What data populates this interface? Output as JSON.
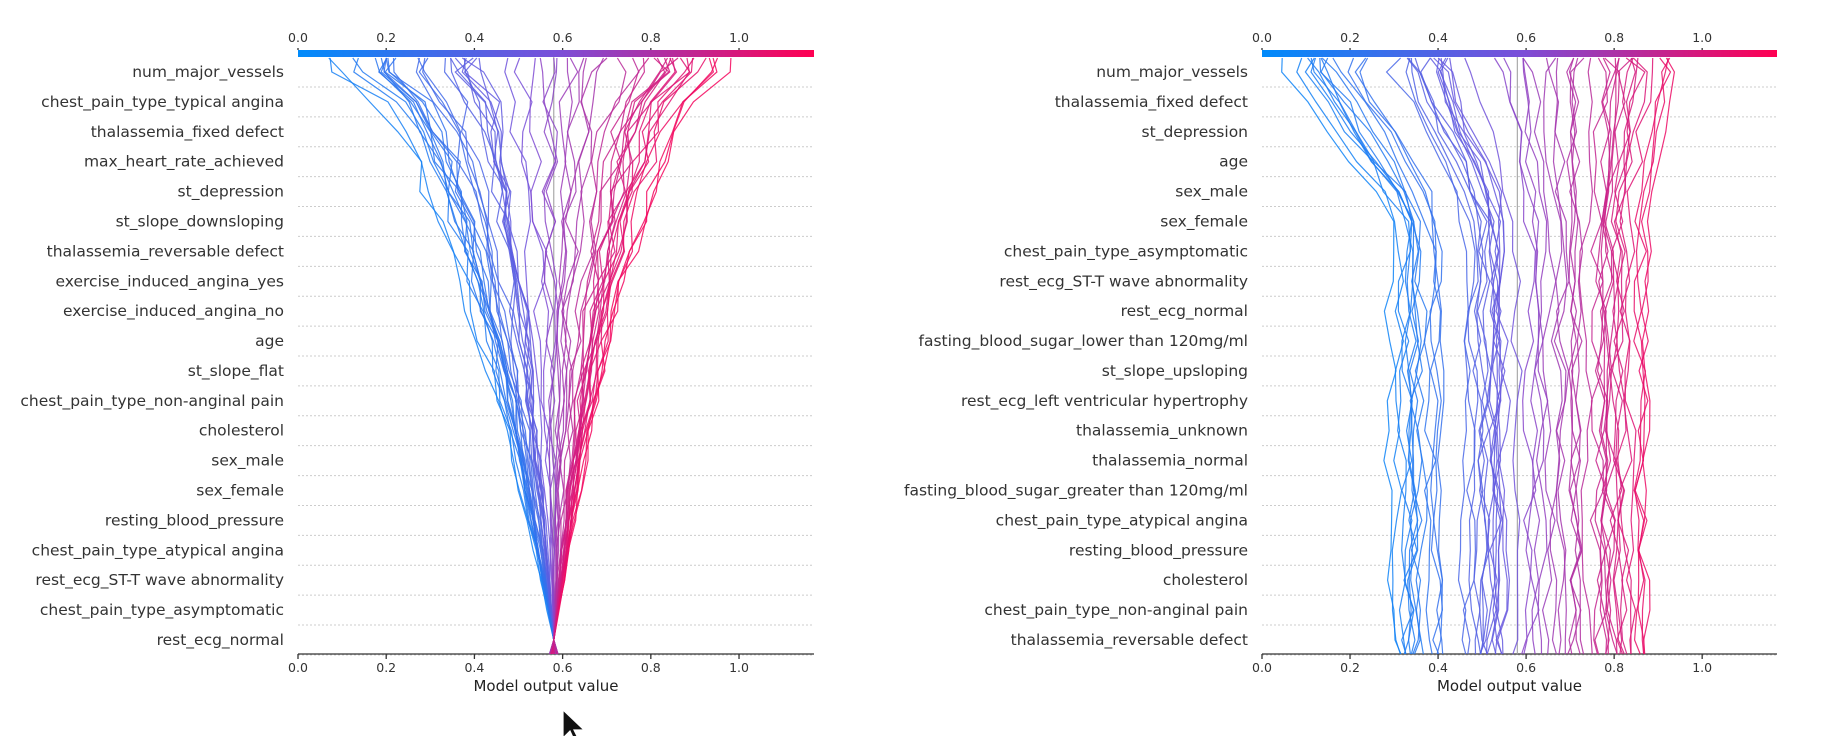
{
  "chart_data": [
    {
      "type": "decision_plot",
      "xlabel": "Model output value",
      "xticks": [
        "0.0",
        "0.2",
        "0.4",
        "0.6",
        "0.8",
        "1.0"
      ],
      "xlim": [
        0.0,
        1.17
      ],
      "base_value": 0.58,
      "colorbar_range": [
        0.0,
        1.0
      ],
      "colormap": [
        "#008bfb",
        "#7a4fd9",
        "#ff0052"
      ],
      "features": [
        "num_major_vessels",
        "chest_pain_type_typical angina",
        "thalassemia_fixed defect",
        "max_heart_rate_achieved",
        "st_depression",
        "st_slope_downsloping",
        "thalassemia_reversable defect",
        "exercise_induced_angina_yes",
        "exercise_induced_angina_no",
        "age",
        "st_slope_flat",
        "chest_pain_type_non-anginal pain",
        "cholesterol",
        "sex_male",
        "sex_female",
        "resting_blood_pressure",
        "chest_pain_type_atypical angina",
        "rest_ecg_ST-T wave abnormality",
        "chest_pain_type_asymptomatic",
        "rest_ecg_normal"
      ]
    },
    {
      "type": "decision_plot",
      "xlabel": "Model output value",
      "xticks": [
        "0.0",
        "0.2",
        "0.4",
        "0.6",
        "0.8",
        "1.0"
      ],
      "xlim": [
        0.0,
        1.17
      ],
      "base_value": 0.58,
      "colorbar_range": [
        0.0,
        1.0
      ],
      "colormap": [
        "#008bfb",
        "#7a4fd9",
        "#ff0052"
      ],
      "features": [
        "num_major_vessels",
        "thalassemia_fixed defect",
        "st_depression",
        "age",
        "sex_male",
        "sex_female",
        "chest_pain_type_asymptomatic",
        "rest_ecg_ST-T wave abnormality",
        "rest_ecg_normal",
        "fasting_blood_sugar_lower than 120mg/ml",
        "st_slope_upsloping",
        "rest_ecg_left ventricular hypertrophy",
        "thalassemia_unknown",
        "thalassemia_normal",
        "fasting_blood_sugar_greater than 120mg/ml",
        "chest_pain_type_atypical angina",
        "resting_blood_pressure",
        "cholesterol",
        "chest_pain_type_non-anginal pain",
        "thalassemia_reversable defect"
      ]
    }
  ],
  "icons": {
    "cursor": "mouse-pointer-icon"
  }
}
